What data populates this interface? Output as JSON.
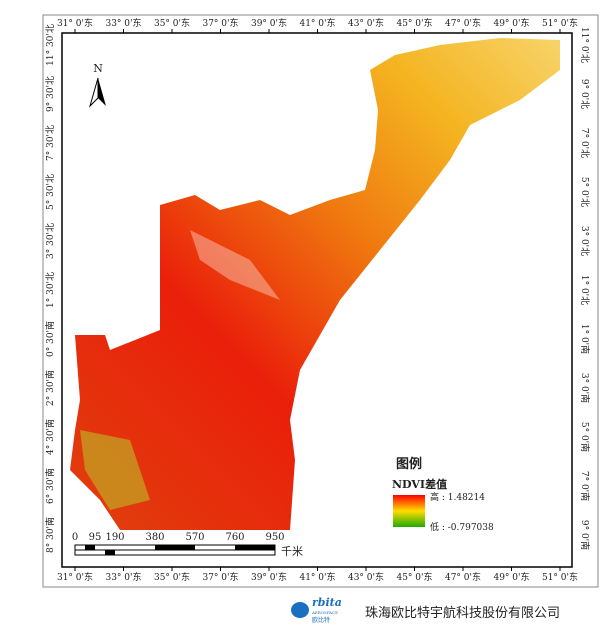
{
  "map": {
    "top_labels": [
      "31° 0'东",
      "33° 0'东",
      "35° 0'东",
      "37° 0'东",
      "39° 0'东",
      "41° 0'东",
      "43° 0'东",
      "45° 0'东",
      "47° 0'东",
      "49° 0'东",
      "51° 0'东"
    ],
    "bottom_labels": [
      "31° 0'东",
      "33° 0'东",
      "35° 0'东",
      "37° 0'东",
      "39° 0'东",
      "41° 0'东",
      "43° 0'东",
      "45° 0'东",
      "47° 0'东",
      "49° 0'东",
      "51° 0'东"
    ],
    "left_labels": [
      "11° 30'北",
      "9° 30'北",
      "7° 30'北",
      "5° 30'北",
      "3° 30'北",
      "1° 30'北",
      "0° 30'南",
      "2° 30'南",
      "4° 30'南",
      "6° 30'南",
      "8° 30'南"
    ],
    "right_labels": [
      "11° 0'北",
      "9° 0'北",
      "7° 0'北",
      "5° 0'北",
      "3° 0'北",
      "1° 0'北",
      "1° 0'南",
      "3° 0'南",
      "5° 0'南",
      "7° 0'南",
      "9° 0'南"
    ],
    "north": "N",
    "scale_bar": {
      "ticks": [
        "0",
        "95",
        "190",
        "380",
        "570",
        "760",
        "950"
      ],
      "unit": "千米"
    },
    "legend": {
      "title": "图例",
      "layer": "NDVI差值",
      "high": "高 : 1.48214",
      "low": "低 : -0.797038"
    }
  },
  "footer": {
    "logo": "rbita",
    "logo_sub": "AEROSPACE",
    "logo_cn": "欧比特",
    "company": "珠海欧比特宇航科技股份有限公司"
  }
}
